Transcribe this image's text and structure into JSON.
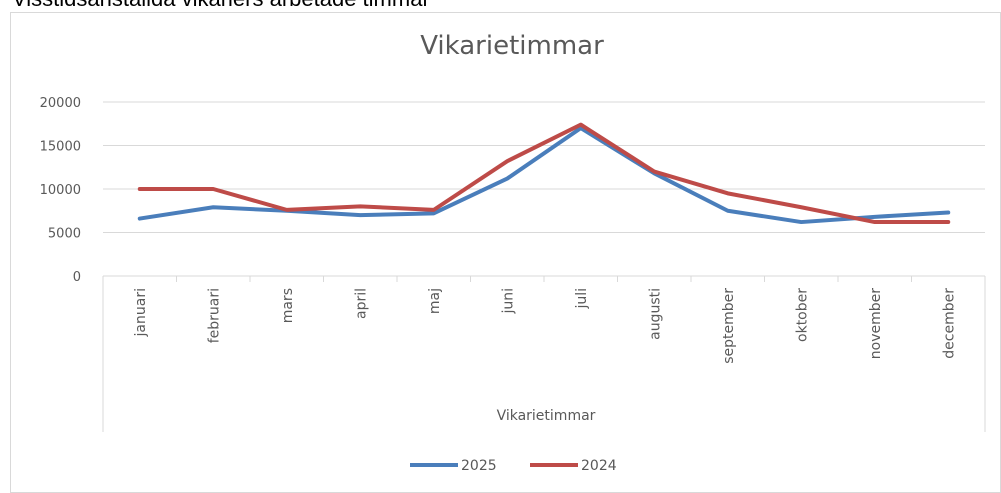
{
  "heading": "Visstidsanställda vikariers arbetade timmar",
  "chart_data": {
    "type": "line",
    "title": "Vikarietimmar",
    "x_label": "Vikarietimmar",
    "categories": [
      "januari",
      "februari",
      "mars",
      "april",
      "maj",
      "juni",
      "juli",
      "augusti",
      "september",
      "oktober",
      "november",
      "december"
    ],
    "series": [
      {
        "name": "2025",
        "color": "#4a7ebb",
        "values": [
          6600,
          7900,
          7500,
          7000,
          7200,
          11200,
          17000,
          11800,
          7500,
          6200,
          6800,
          7300
        ]
      },
      {
        "name": "2024",
        "color": "#be4b48",
        "values": [
          10000,
          10000,
          7600,
          8000,
          7600,
          13200,
          17400,
          12000,
          9500,
          7900,
          6200,
          6200
        ]
      }
    ],
    "ylim": [
      0,
      20000
    ],
    "yticks": [
      0,
      5000,
      10000,
      15000,
      20000
    ],
    "grid": true,
    "legend": "bottom"
  }
}
